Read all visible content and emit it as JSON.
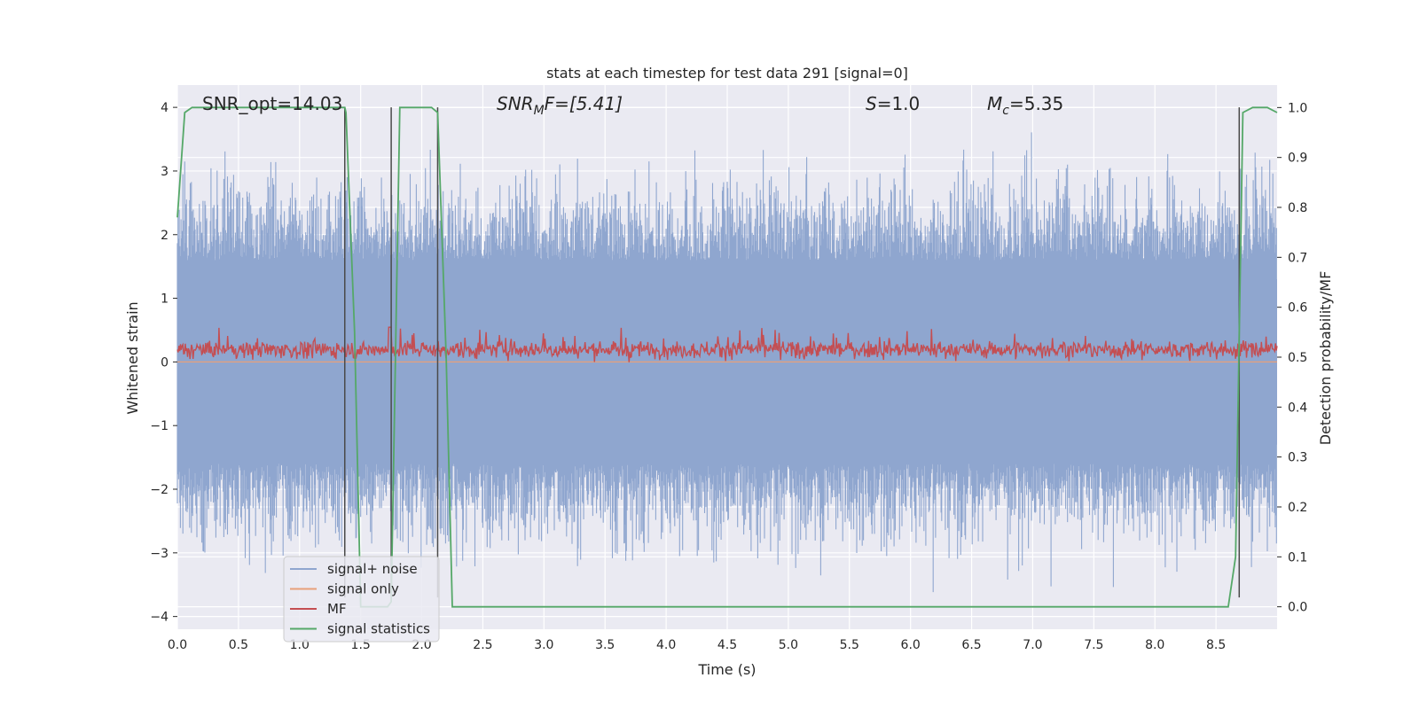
{
  "chart_data": {
    "type": "line",
    "title": "stats at each timestep for test data 291 [signal=0]",
    "xlabel": "Time (s)",
    "ylabel": "Whitened strain",
    "y2label": "Detection probability/MF",
    "xlim": [
      0,
      9.0
    ],
    "ylim": [
      -4.2,
      4.35
    ],
    "y2lim": [
      -0.045,
      1.045
    ],
    "x_ticks": [
      "0.0",
      "0.5",
      "1.0",
      "1.5",
      "2.0",
      "2.5",
      "3.0",
      "3.5",
      "4.0",
      "4.5",
      "5.0",
      "5.5",
      "6.0",
      "6.5",
      "7.0",
      "7.5",
      "8.0",
      "8.5"
    ],
    "y_ticks": [
      "4",
      "3",
      "2",
      "1",
      "0",
      "−1",
      "−2",
      "−3",
      "−4"
    ],
    "y2_ticks": [
      "1.0",
      "0.9",
      "0.8",
      "0.7",
      "0.6",
      "0.5",
      "0.4",
      "0.3",
      "0.2",
      "0.1",
      "0.0"
    ],
    "grid": true,
    "legend_placement": "lower-left",
    "annotations": {
      "snr_opt": "SNR_opt=14.03",
      "snr_mf_sym": "SNR",
      "snr_mf_sub": "M",
      "snr_mf_rest": "F=[5.41]",
      "s_sym": "S",
      "s_rest": "=1.0",
      "mc_sym": "M",
      "mc_sub": "c",
      "mc_rest": "=5.35"
    },
    "series": [
      {
        "name": "signal+ noise",
        "color": "#8fa6cf",
        "description_axis": "left",
        "approx_amplitude": [
          -3.7,
          4.0
        ]
      },
      {
        "name": "signal only",
        "color": "#e8a07a",
        "values_axis": "left",
        "constant": 0.0
      },
      {
        "name": "MF",
        "color": "#c44e52",
        "values_axis": "right",
        "approx_range": [
          0.5,
          0.55
        ]
      },
      {
        "name": "signal statistics",
        "color": "#55a868",
        "values_axis": "right",
        "x": [
          0.0,
          0.06,
          0.12,
          1.37,
          1.38,
          1.45,
          1.5,
          1.72,
          1.75,
          1.82,
          2.08,
          2.13,
          2.2,
          2.25,
          2.3,
          8.6,
          8.66,
          8.72,
          8.8,
          8.92,
          9.0
        ],
        "values": [
          0.78,
          0.99,
          1.0,
          1.0,
          0.99,
          0.55,
          0.0,
          0.0,
          0.01,
          1.0,
          1.0,
          0.99,
          0.5,
          0.0,
          0.0,
          0.0,
          0.1,
          0.99,
          1.0,
          1.0,
          0.99
        ]
      }
    ],
    "vertical_markers": {
      "x": [
        1.37,
        1.75,
        2.13,
        8.69
      ],
      "y_range": [
        -3.7,
        4.0
      ],
      "color": "#4a4a4a"
    }
  }
}
